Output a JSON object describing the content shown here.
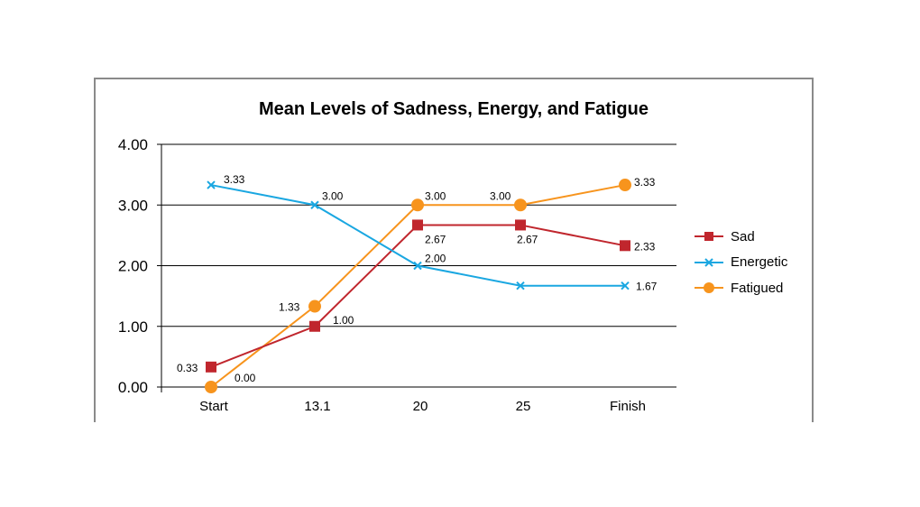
{
  "chart_data": {
    "type": "line",
    "title": "Mean Levels of Sadness, Energy, and Fatigue",
    "categories": [
      "Start",
      "13.1",
      "20",
      "25",
      "Finish"
    ],
    "ylim": [
      0,
      4
    ],
    "yticks": [
      "0.00",
      "1.00",
      "2.00",
      "3.00",
      "4.00"
    ],
    "grid": true,
    "legend_position": "right",
    "series": [
      {
        "name": "Sad",
        "color": "#c0262d",
        "marker": "square",
        "values": [
          0.33,
          1.0,
          2.67,
          2.67,
          2.33
        ],
        "labels": [
          "0.33",
          "1.00",
          "2.67",
          "2.67",
          "2.33"
        ]
      },
      {
        "name": "Energetic",
        "color": "#1aa7e1",
        "marker": "x",
        "values": [
          3.33,
          3.0,
          2.0,
          1.67,
          1.67
        ],
        "labels": [
          "3.33",
          "3.00",
          "2.00",
          "",
          "1.67"
        ]
      },
      {
        "name": "Fatigued",
        "color": "#f7941d",
        "marker": "circle",
        "values": [
          0.0,
          1.33,
          3.0,
          3.0,
          3.33
        ],
        "labels": [
          "0.00",
          "1.33",
          "3.00",
          "3.00",
          "3.33"
        ]
      }
    ]
  }
}
